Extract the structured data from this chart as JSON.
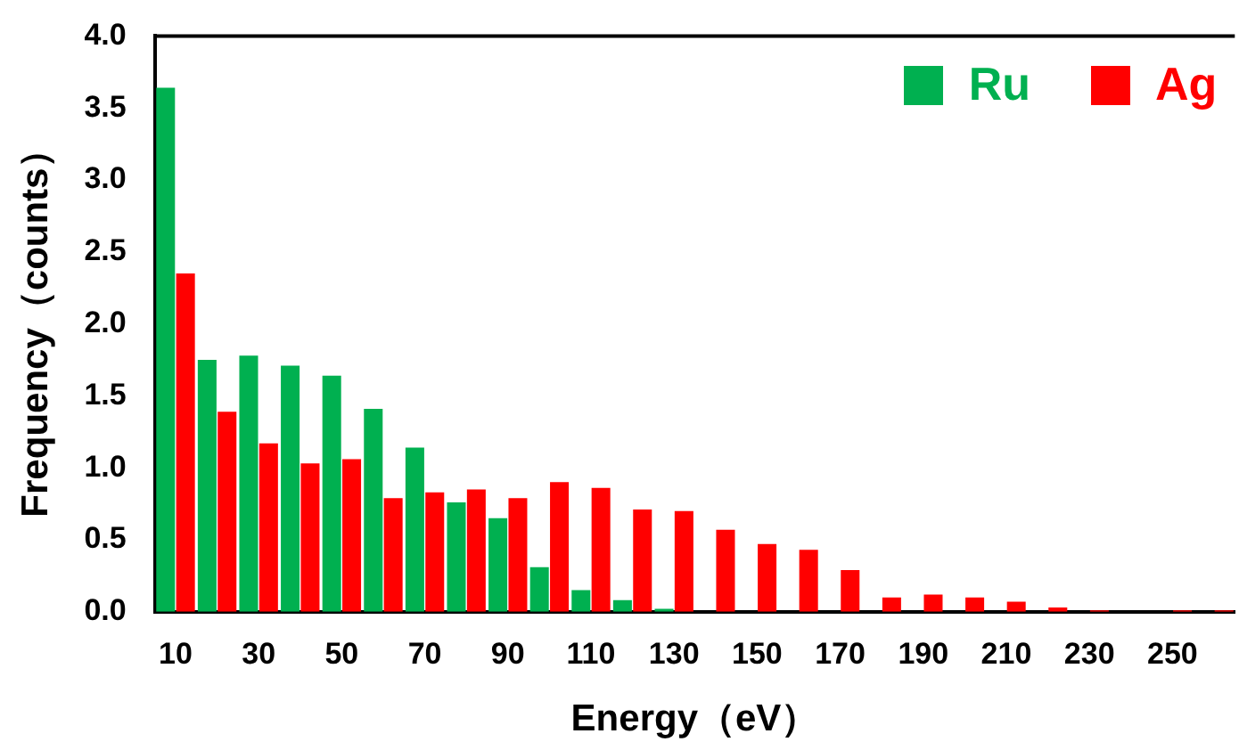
{
  "chart_data": {
    "type": "bar",
    "xlabel": "Energy（eV）",
    "ylabel": "Frequency（counts）",
    "categories": [
      "10",
      null,
      "30",
      null,
      "50",
      null,
      "70",
      null,
      "90",
      null,
      "110",
      null,
      "130",
      null,
      "150",
      null,
      "170",
      null,
      "190",
      null,
      "210",
      null,
      "230",
      null,
      "250",
      null
    ],
    "series": [
      {
        "name": "Ru",
        "color": "#00b050",
        "values": [
          3.64,
          1.75,
          1.78,
          1.71,
          1.64,
          1.41,
          1.14,
          0.76,
          0.65,
          0.31,
          0.15,
          0.08,
          0.02,
          0,
          0,
          0,
          0,
          0,
          0,
          0,
          0,
          0,
          0,
          0,
          0,
          0
        ]
      },
      {
        "name": "Ag",
        "color": "#ff0000",
        "values": [
          2.35,
          1.39,
          1.17,
          1.03,
          1.06,
          0.79,
          0.83,
          0.85,
          0.79,
          0.9,
          0.86,
          0.71,
          0.7,
          0.57,
          0.47,
          0.43,
          0.29,
          0.1,
          0.12,
          0.1,
          0.07,
          0.03,
          0.01,
          0,
          0.01,
          0.01
        ]
      }
    ],
    "ylim": [
      0,
      4
    ],
    "yticks": [
      {
        "value": 0,
        "label": "0.0"
      },
      {
        "value": 0.5,
        "label": "0.5"
      },
      {
        "value": 1,
        "label": "1.0"
      },
      {
        "value": 1.5,
        "label": "1.5"
      },
      {
        "value": 2,
        "label": "2.0"
      },
      {
        "value": 2.5,
        "label": "2.5"
      },
      {
        "value": 3,
        "label": "3.0"
      },
      {
        "value": 3.5,
        "label": "3.5"
      },
      {
        "value": 4,
        "label": "4.0"
      }
    ],
    "grid": false,
    "legend": "top right"
  }
}
